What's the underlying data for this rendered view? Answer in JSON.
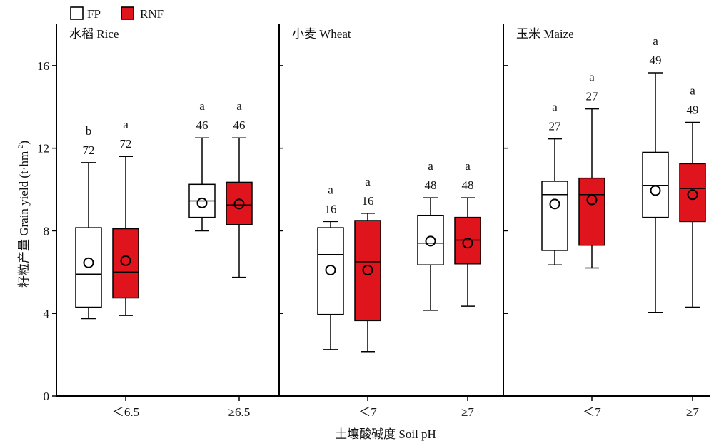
{
  "legend": [
    {
      "label": "FP",
      "color": "#ffffff"
    },
    {
      "label": "RNF",
      "color": "#e0141c"
    }
  ],
  "y_axis_label": "籽粒产量 Grain yield (t·hm",
  "y_axis_label_sup": "-2",
  "y_axis_label_end": ")",
  "x_axis_label": "土壤酸碱度 Soil pH",
  "chart_data": {
    "type": "box",
    "ylim": [
      0,
      18
    ],
    "yticks": [
      0,
      4,
      8,
      12,
      16
    ],
    "series": [
      {
        "name": "FP",
        "color": "#ffffff"
      },
      {
        "name": "RNF",
        "color": "#e0141c"
      }
    ],
    "panels": [
      {
        "title": "水稻 Rice",
        "groups": [
          {
            "category": "＜6.5",
            "boxes": [
              {
                "series": "FP",
                "min": 3.75,
                "q1": 4.3,
                "median": 5.9,
                "q3": 8.15,
                "max": 11.3,
                "mean": 6.45,
                "n": "72",
                "sig": "b"
              },
              {
                "series": "RNF",
                "min": 3.9,
                "q1": 4.75,
                "median": 6.0,
                "q3": 8.1,
                "max": 11.6,
                "mean": 6.55,
                "n": "72",
                "sig": "a"
              }
            ]
          },
          {
            "category": "≥6.5",
            "boxes": [
              {
                "series": "FP",
                "min": 8.0,
                "q1": 8.65,
                "median": 9.45,
                "q3": 10.25,
                "max": 12.5,
                "mean": 9.35,
                "n": "46",
                "sig": "a"
              },
              {
                "series": "RNF",
                "min": 5.75,
                "q1": 8.3,
                "median": 9.25,
                "q3": 10.35,
                "max": 12.5,
                "mean": 9.3,
                "n": "46",
                "sig": "a"
              }
            ]
          }
        ]
      },
      {
        "title": "小麦 Wheat",
        "groups": [
          {
            "category": "＜7",
            "boxes": [
              {
                "series": "FP",
                "min": 2.25,
                "q1": 3.95,
                "median": 6.85,
                "q3": 8.15,
                "max": 8.45,
                "mean": 6.1,
                "n": "16",
                "sig": "a"
              },
              {
                "series": "RNF",
                "min": 2.15,
                "q1": 3.65,
                "median": 6.5,
                "q3": 8.5,
                "max": 8.85,
                "mean": 6.1,
                "n": "16",
                "sig": "a"
              }
            ]
          },
          {
            "category": "≥7",
            "boxes": [
              {
                "series": "FP",
                "min": 4.15,
                "q1": 6.35,
                "median": 7.4,
                "q3": 8.75,
                "max": 9.6,
                "mean": 7.5,
                "n": "48",
                "sig": "a"
              },
              {
                "series": "RNF",
                "min": 4.35,
                "q1": 6.4,
                "median": 7.55,
                "q3": 8.65,
                "max": 9.6,
                "mean": 7.4,
                "n": "48",
                "sig": "a"
              }
            ]
          }
        ]
      },
      {
        "title": "玉米 Maize",
        "groups": [
          {
            "category": "＜7",
            "boxes": [
              {
                "series": "FP",
                "min": 6.35,
                "q1": 7.05,
                "median": 9.75,
                "q3": 10.4,
                "max": 12.45,
                "mean": 9.3,
                "n": "27",
                "sig": "a"
              },
              {
                "series": "RNF",
                "min": 6.2,
                "q1": 7.3,
                "median": 9.75,
                "q3": 10.55,
                "max": 13.9,
                "mean": 9.5,
                "n": "27",
                "sig": "a"
              }
            ]
          },
          {
            "category": "≥7",
            "boxes": [
              {
                "series": "FP",
                "min": 4.05,
                "q1": 8.65,
                "median": 10.2,
                "q3": 11.8,
                "max": 15.65,
                "mean": 9.95,
                "n": "49",
                "sig": "a"
              },
              {
                "series": "RNF",
                "min": 4.3,
                "q1": 8.45,
                "median": 10.05,
                "q3": 11.25,
                "max": 13.25,
                "mean": 9.75,
                "n": "49",
                "sig": "a"
              }
            ]
          }
        ]
      }
    ]
  }
}
